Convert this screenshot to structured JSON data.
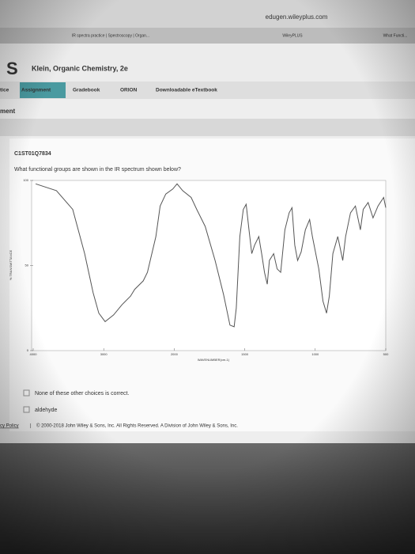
{
  "browser": {
    "url": "edugen.wileyplus.com",
    "tabs": [
      "IR spectra practice | Spectroscopy | Organ...",
      "WileyPLUS",
      "What Functi..."
    ]
  },
  "header": {
    "logo": "S",
    "title": "Klein, Organic Chemistry, 2e"
  },
  "nav": {
    "items": [
      "tice",
      "Assignment",
      "Gradebook",
      "ORION",
      "Downloadable eTextbook"
    ],
    "active": 1
  },
  "section_title": "ment",
  "question": {
    "id": "C1ST01Q7834",
    "text": "What functional groups are shown in the IR spectrum shown below?"
  },
  "chart_data": {
    "type": "line",
    "xlabel": "WAVENUMBER(cm-1)",
    "ylabel": "% TRANSMITTANCE",
    "color": "#555555",
    "x": [
      3965,
      3670,
      3440,
      3270,
      3150,
      3070,
      2980,
      2860,
      2740,
      2620,
      2560,
      2440,
      2380,
      2260,
      2200,
      2120,
      2020,
      1980,
      1940,
      1880,
      1840,
      1780,
      1710,
      1650,
      1605,
      1575,
      1560,
      1535,
      1510,
      1490,
      1470,
      1450,
      1430,
      1400,
      1380,
      1360,
      1340,
      1325,
      1295,
      1270,
      1245,
      1215,
      1185,
      1165,
      1145,
      1125,
      1100,
      1070,
      1040,
      1020,
      975,
      945,
      920,
      900,
      875,
      840,
      805,
      785,
      750,
      715,
      680,
      660,
      625,
      590,
      555,
      515,
      500
    ],
    "values": [
      98,
      94,
      83,
      57,
      34,
      22,
      17,
      21,
      27,
      32,
      36,
      41,
      46,
      67,
      85,
      92,
      95,
      98,
      94,
      90,
      83,
      73,
      53,
      33,
      15,
      14,
      25,
      67,
      83,
      86,
      71,
      57,
      62,
      67,
      57,
      46,
      39,
      53,
      57,
      48,
      46,
      71,
      81,
      84,
      62,
      53,
      58,
      71,
      77,
      67,
      48,
      29,
      22,
      32,
      57,
      67,
      53,
      67,
      81,
      85,
      71,
      83,
      87,
      78,
      85,
      90,
      84
    ],
    "xlim": [
      4000,
      500
    ],
    "ylim": [
      0,
      100
    ],
    "xticks": [
      4000,
      3000,
      2000,
      1500,
      1000,
      500
    ],
    "yticks": [
      0,
      50,
      100
    ]
  },
  "choices": [
    "None of these other choices is correct.",
    "aldehyde"
  ],
  "footer": {
    "policy": "cy Policy",
    "separator": "|",
    "copyright": "© 2000-2018 John Wiley & Sons, Inc. All Rights Reserved. A Division of John Wiley & Sons, Inc."
  }
}
